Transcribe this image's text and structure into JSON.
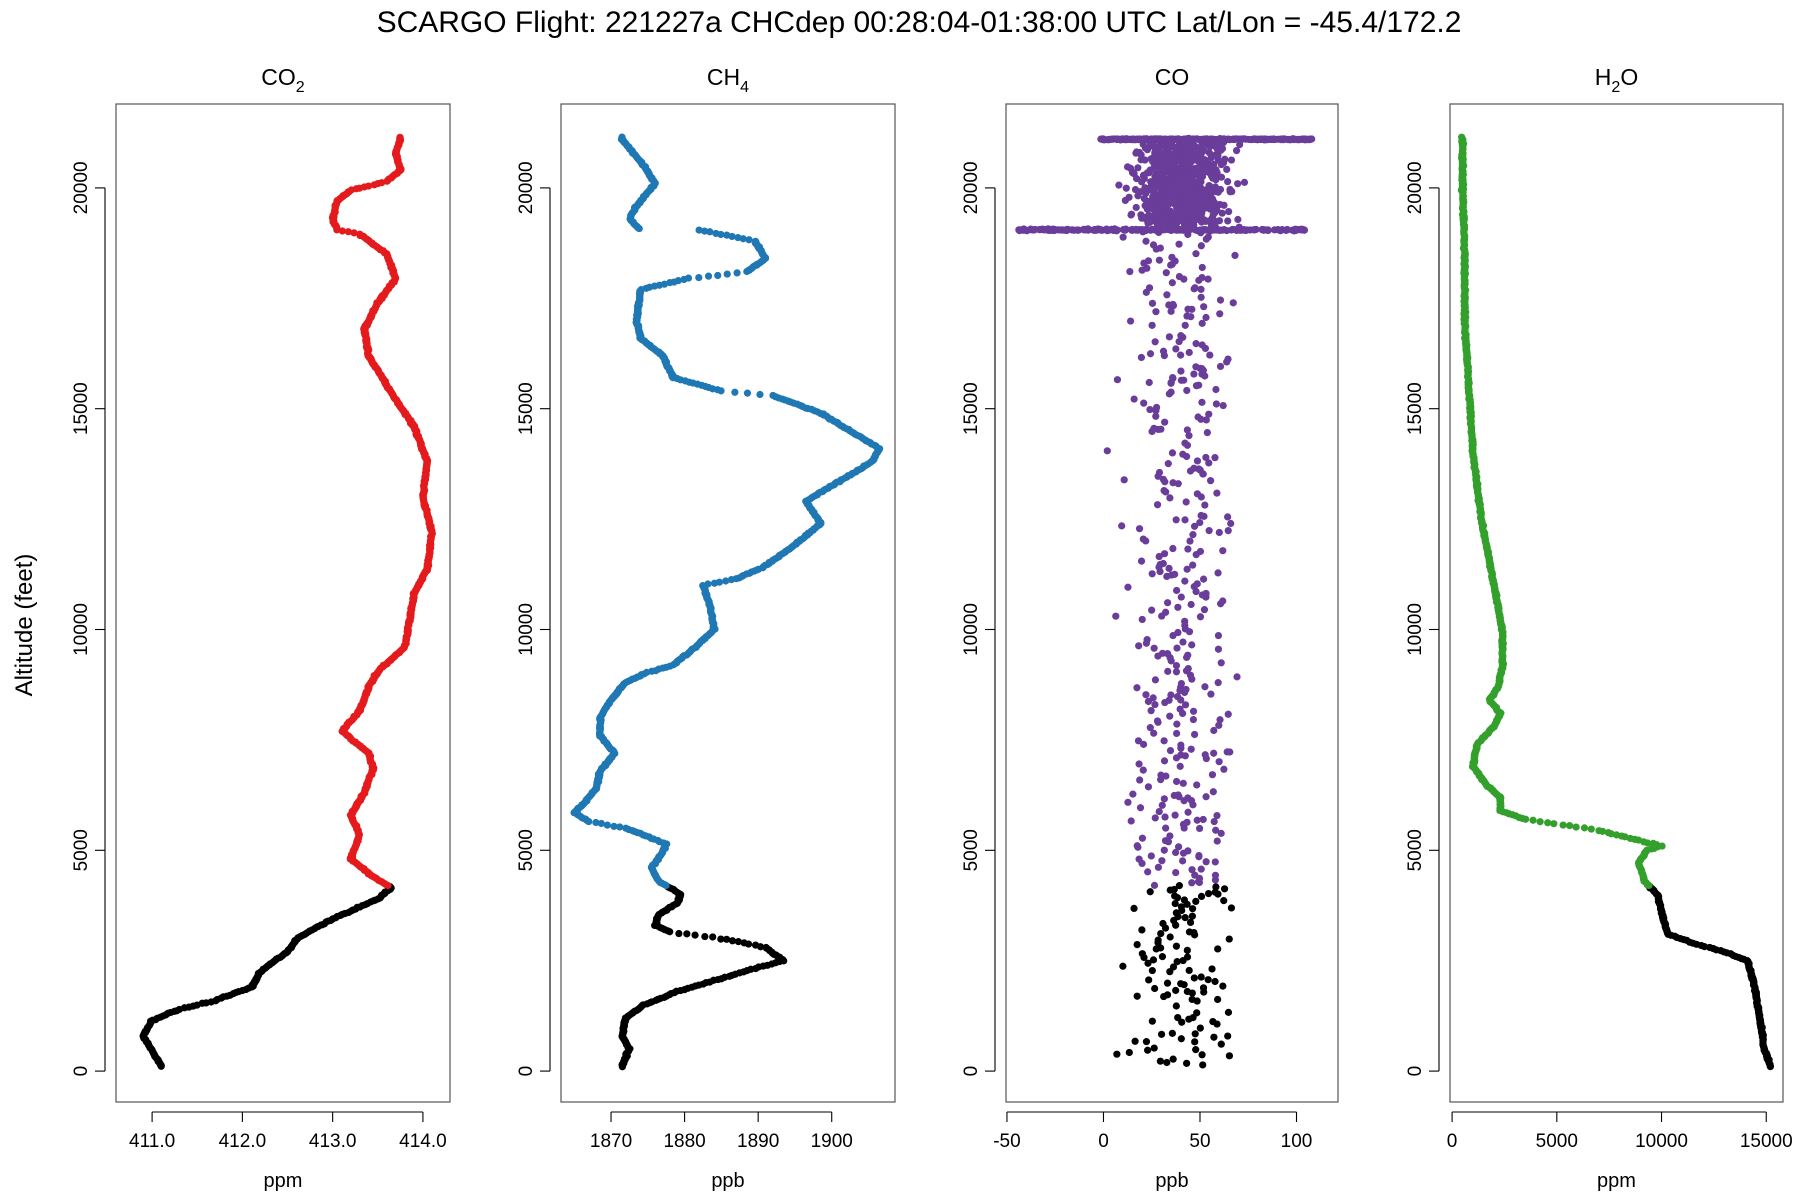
{
  "figure": {
    "title": "SCARGO Flight: 221227a  CHCdep  00:28:04-01:38:00 UTC  Lat/Lon = -45.4/172.2",
    "ylabel": "Altitude (feet)"
  },
  "chart_data": [
    {
      "type": "scatter",
      "title": "CO",
      "title_sub": "2",
      "xlabel": "ppm",
      "ylabel": "Altitude (feet)",
      "xlim": [
        410.6,
        414.3
      ],
      "ylim": [
        -700,
        21900
      ],
      "xticks": [
        "411.0",
        "412.0",
        "413.0",
        "414.0"
      ],
      "yticks": [
        "0",
        "5000",
        "10000",
        "15000",
        "20000"
      ],
      "upper_color": "#e41a1c",
      "lower_color": "#000000",
      "profile": [
        [
          411.1,
          120
        ],
        [
          410.9,
          800
        ],
        [
          411.0,
          1150
        ],
        [
          411.3,
          1400
        ],
        [
          411.7,
          1600
        ],
        [
          412.1,
          1900
        ],
        [
          412.2,
          2250
        ],
        [
          412.5,
          2700
        ],
        [
          412.6,
          3000
        ],
        [
          413.0,
          3450
        ],
        [
          413.5,
          3900
        ],
        [
          413.65,
          4150
        ],
        [
          413.45,
          4400
        ],
        [
          413.2,
          4800
        ],
        [
          413.3,
          5350
        ],
        [
          413.2,
          5800
        ],
        [
          413.35,
          6300
        ],
        [
          413.45,
          6850
        ],
        [
          413.4,
          7200
        ],
        [
          413.1,
          7700
        ],
        [
          413.3,
          8150
        ],
        [
          413.4,
          8700
        ],
        [
          413.5,
          9050
        ],
        [
          413.8,
          9600
        ],
        [
          413.85,
          10200
        ],
        [
          413.9,
          10800
        ],
        [
          414.05,
          11400
        ],
        [
          414.1,
          12200
        ],
        [
          414.0,
          13000
        ],
        [
          414.05,
          13800
        ],
        [
          413.9,
          14600
        ],
        [
          413.7,
          15200
        ],
        [
          413.55,
          15700
        ],
        [
          413.4,
          16200
        ],
        [
          413.35,
          16800
        ],
        [
          413.5,
          17400
        ],
        [
          413.7,
          17950
        ],
        [
          413.6,
          18500
        ],
        [
          413.3,
          18950
        ],
        [
          413.05,
          19050
        ],
        [
          413.0,
          19300
        ],
        [
          413.05,
          19700
        ],
        [
          413.2,
          19950
        ],
        [
          413.6,
          20150
        ],
        [
          413.75,
          20400
        ],
        [
          413.7,
          20800
        ],
        [
          413.75,
          21100
        ]
      ]
    },
    {
      "type": "scatter",
      "title": "CH",
      "title_sub": "4",
      "xlabel": "ppb",
      "ylabel": "Altitude (feet)",
      "xlim": [
        1863.2,
        1908.6
      ],
      "ylim": [
        -700,
        21900
      ],
      "xticks": [
        "1870",
        "1880",
        "1890",
        "1900"
      ],
      "yticks": [
        "0",
        "5000",
        "10000",
        "15000",
        "20000"
      ],
      "upper_color": "#1f78b4",
      "lower_color": "#000000",
      "profile": [
        [
          1871.5,
          120
        ],
        [
          1872.5,
          500
        ],
        [
          1871.5,
          800
        ],
        [
          1872.0,
          1200
        ],
        [
          1874.5,
          1500
        ],
        [
          1879.0,
          1800
        ],
        [
          1884.0,
          2050
        ],
        [
          1889.0,
          2300
        ],
        [
          1893.5,
          2500
        ],
        [
          1891.0,
          2800
        ],
        [
          1885.0,
          3000
        ],
        [
          1878.0,
          3150
        ],
        [
          1876.0,
          3300
        ],
        [
          1876.5,
          3550
        ],
        [
          1879.0,
          3800
        ],
        [
          1879.5,
          4000
        ],
        [
          1876.5,
          4300
        ],
        [
          1875.5,
          4600
        ],
        [
          1877.0,
          4950
        ],
        [
          1877.5,
          5150
        ],
        [
          1872.0,
          5500
        ],
        [
          1867.0,
          5650
        ],
        [
          1865.0,
          5850
        ],
        [
          1866.5,
          6100
        ],
        [
          1868.0,
          6400
        ],
        [
          1868.5,
          6800
        ],
        [
          1870.5,
          7200
        ],
        [
          1868.5,
          7600
        ],
        [
          1868.5,
          8000
        ],
        [
          1870.0,
          8400
        ],
        [
          1872.0,
          8800
        ],
        [
          1874.5,
          9000
        ],
        [
          1878.5,
          9200
        ],
        [
          1881.5,
          9600
        ],
        [
          1884.0,
          10000
        ],
        [
          1883.5,
          10500
        ],
        [
          1882.5,
          11000
        ],
        [
          1887.0,
          11150
        ],
        [
          1890.5,
          11400
        ],
        [
          1894.5,
          11850
        ],
        [
          1898.5,
          12400
        ],
        [
          1896.5,
          12900
        ],
        [
          1901.5,
          13400
        ],
        [
          1905.5,
          13800
        ],
        [
          1906.5,
          14100
        ],
        [
          1902.5,
          14500
        ],
        [
          1898.5,
          14900
        ],
        [
          1892.0,
          15300
        ],
        [
          1885.0,
          15400
        ],
        [
          1878.5,
          15700
        ],
        [
          1877.0,
          16200
        ],
        [
          1874.0,
          16600
        ],
        [
          1873.5,
          17000
        ],
        [
          1874.0,
          17700
        ],
        [
          1880.5,
          17950
        ],
        [
          1888.5,
          18100
        ],
        [
          1891.0,
          18400
        ],
        [
          1889.5,
          18800
        ],
        [
          1882.0,
          19050
        ],
        [
          1874.0,
          19050
        ],
        [
          1872.5,
          19300
        ],
        [
          1873.5,
          19600
        ],
        [
          1876.0,
          20100
        ],
        [
          1874.5,
          20500
        ],
        [
          1873.0,
          20800
        ],
        [
          1871.5,
          21100
        ]
      ]
    },
    {
      "type": "scatter",
      "title": "CO",
      "title_sub": "",
      "xlabel": "ppb",
      "ylabel": "Altitude (feet)",
      "xlim": [
        -50.5,
        121.5
      ],
      "ylim": [
        -700,
        21900
      ],
      "xticks": [
        "-50",
        "0",
        "50",
        "100"
      ],
      "yticks": [
        "0",
        "5000",
        "10000",
        "15000",
        "20000"
      ],
      "upper_color": "#6a3d9a",
      "lower_color": "#000000",
      "noise_center_ppb": 40,
      "noise_spread_ppb": 25
    },
    {
      "type": "scatter",
      "title": "H",
      "title_sub": "2",
      "title_tail": "O",
      "xlabel": "ppm",
      "ylabel": "Altitude (feet)",
      "xlim": [
        -100,
        15800
      ],
      "ylim": [
        -700,
        21900
      ],
      "xticks": [
        "0",
        "5000",
        "10000",
        "15000"
      ],
      "yticks": [
        "0",
        "5000",
        "10000",
        "15000",
        "20000"
      ],
      "upper_color": "#33a02c",
      "lower_color": "#000000",
      "profile": [
        [
          15200,
          100
        ],
        [
          14900,
          500
        ],
        [
          14700,
          1200
        ],
        [
          14400,
          2000
        ],
        [
          14100,
          2500
        ],
        [
          13000,
          2700
        ],
        [
          11500,
          2900
        ],
        [
          10300,
          3100
        ],
        [
          10000,
          3600
        ],
        [
          9800,
          4000
        ],
        [
          9200,
          4300
        ],
        [
          8900,
          4700
        ],
        [
          9300,
          5000
        ],
        [
          10000,
          5100
        ],
        [
          7000,
          5450
        ],
        [
          3500,
          5700
        ],
        [
          2300,
          5900
        ],
        [
          2300,
          6200
        ],
        [
          1600,
          6500
        ],
        [
          1000,
          6900
        ],
        [
          1200,
          7400
        ],
        [
          2000,
          7800
        ],
        [
          2300,
          8100
        ],
        [
          1800,
          8400
        ],
        [
          2200,
          8700
        ],
        [
          2400,
          9200
        ],
        [
          2400,
          10000
        ],
        [
          2000,
          11000
        ],
        [
          1400,
          12500
        ],
        [
          1000,
          14000
        ],
        [
          800,
          15500
        ],
        [
          600,
          17000
        ],
        [
          600,
          18500
        ],
        [
          500,
          20000
        ],
        [
          500,
          21100
        ]
      ]
    }
  ],
  "split_altitude_ft": 4200
}
